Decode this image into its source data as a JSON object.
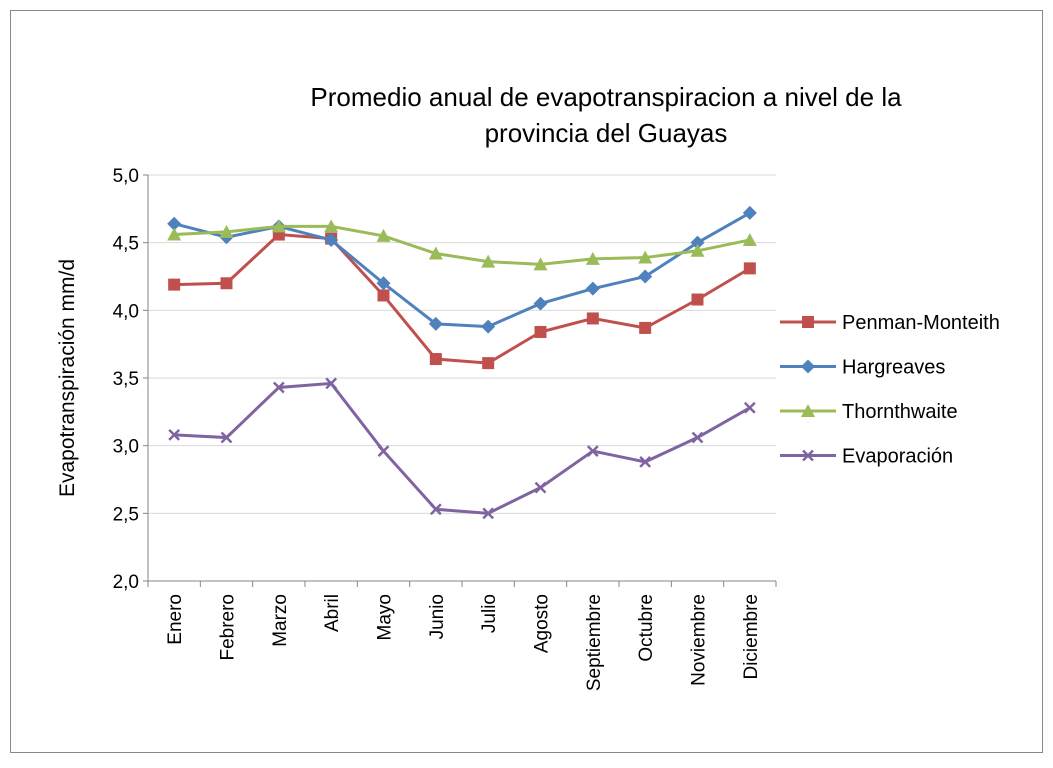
{
  "chart_data": {
    "type": "line",
    "title": [
      "Promedio anual de evapotranspiracion a nivel de la",
      "provincia del Guayas"
    ],
    "y_label": "Evapotranspiración  mm/d",
    "categories": [
      "Enero",
      "Febrero",
      "Marzo",
      "Abril",
      "Mayo",
      "Junio",
      "Julio",
      "Agosto",
      "Septiembre",
      "Octubre",
      "Noviembre",
      "Diciembre"
    ],
    "series": [
      {
        "name": "Penman-Monteith",
        "color": "#c0504d",
        "marker": "square",
        "values": [
          4.19,
          4.2,
          4.56,
          4.53,
          4.11,
          3.64,
          3.61,
          3.84,
          3.94,
          3.87,
          4.08,
          4.31
        ]
      },
      {
        "name": "Hargreaves",
        "color": "#4f81bd",
        "marker": "diamond",
        "values": [
          4.64,
          4.54,
          4.62,
          4.52,
          4.2,
          3.9,
          3.88,
          4.05,
          4.16,
          4.25,
          4.5,
          4.72
        ]
      },
      {
        "name": "Thornthwaite",
        "color": "#9bbb59",
        "marker": "triangle",
        "values": [
          4.56,
          4.58,
          4.62,
          4.62,
          4.55,
          4.42,
          4.36,
          4.34,
          4.38,
          4.39,
          4.44,
          4.52
        ]
      },
      {
        "name": "Evaporación",
        "color": "#8064a2",
        "marker": "x",
        "values": [
          3.08,
          3.06,
          3.43,
          3.46,
          2.96,
          2.53,
          2.5,
          2.69,
          2.96,
          2.88,
          3.06,
          3.28
        ]
      }
    ],
    "ylim": [
      2.0,
      5.0
    ],
    "yticks": [
      {
        "value": 2.0,
        "label": "2,0"
      },
      {
        "value": 2.5,
        "label": "2,5"
      },
      {
        "value": 3.0,
        "label": "3,0"
      },
      {
        "value": 3.5,
        "label": "3,5"
      },
      {
        "value": 4.0,
        "label": "4,0"
      },
      {
        "value": 4.5,
        "label": "4,5"
      },
      {
        "value": 5.0,
        "label": "5,0"
      }
    ],
    "grid": true,
    "legend": "right"
  }
}
